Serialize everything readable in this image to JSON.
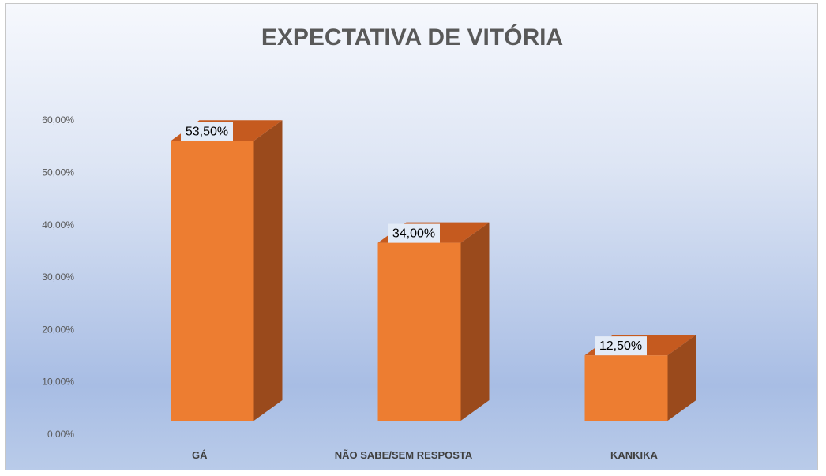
{
  "chart_data": {
    "type": "bar",
    "title": "EXPECTATIVA DE VITÓRIA",
    "categories": [
      "GÁ",
      "NÃO SABE/SEM RESPOSTA",
      "KANKIKA"
    ],
    "values": [
      53.5,
      34.0,
      12.5
    ],
    "data_labels": [
      "53,50%",
      "34,00%",
      "12,50%"
    ],
    "ylim": [
      0,
      60
    ],
    "yticks": [
      0,
      10,
      20,
      30,
      40,
      50,
      60
    ],
    "ytick_labels": [
      "0,00%",
      "10,00%",
      "20,00%",
      "30,00%",
      "40,00%",
      "50,00%",
      "60,00%"
    ],
    "xlabel": "",
    "ylabel": "",
    "grid": false,
    "legend": "none",
    "style": "3d-column",
    "colors": {
      "bar_front": "#ED7D31",
      "bar_side": "#9A4A1C",
      "bar_top": "#C55A1F",
      "label_box": "#E3EBF7"
    }
  }
}
